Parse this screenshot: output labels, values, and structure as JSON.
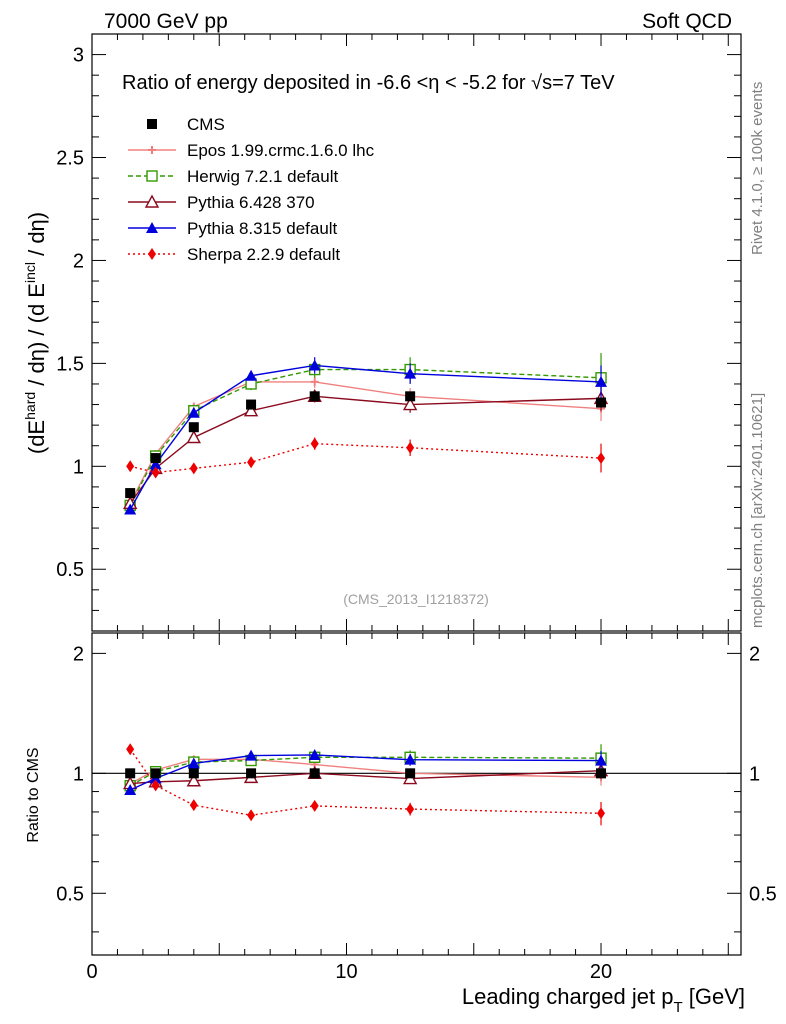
{
  "header": {
    "left": "7000 GeV pp",
    "right": "Soft QCD"
  },
  "side_text": {
    "rivet": "Rivet 4.1.0, ≥ 100k events",
    "mcplots": "mcplots.cern.ch [arXiv:2401.10621]"
  },
  "main_title": "Ratio of energy deposited in -6.6 <η < -5.2 for √s=7 TeV",
  "watermark": "(CMS_2013_I1218372)",
  "labels": {
    "ylabel": "(dE^hard / dη) / (d E^incl / dη)",
    "ylabel_parts": [
      "(dE",
      "hard",
      " / dη) / (d E",
      "incl",
      " / dη)"
    ],
    "ratio_ylabel": "Ratio to CMS",
    "xlabel": "Leading charged jet p_T [GeV]",
    "xlabel_parts": [
      "Leading charged jet p",
      "T",
      " [GeV]"
    ]
  },
  "chart_data": {
    "type": "line",
    "x_bin_edges": [
      1,
      2,
      3,
      5,
      7.5,
      10,
      15,
      25
    ],
    "x": [
      1.5,
      2.5,
      4,
      6.25,
      8.75,
      12.5,
      20
    ],
    "xlim": [
      0,
      25.5
    ],
    "main_ylim": [
      0.2,
      3.1
    ],
    "ratio_ylim": [
      0.35,
      2.25
    ],
    "x_ticks": [
      0,
      10,
      20
    ],
    "main_y_ticks": [
      0.5,
      1,
      1.5,
      2,
      2.5,
      3
    ],
    "ratio_y_ticks": [
      0.5,
      1,
      2
    ],
    "series": [
      {
        "name": "CMS",
        "color": "#000000",
        "marker": "square-filled",
        "dash": "none",
        "values": [
          0.87,
          1.04,
          1.19,
          1.3,
          1.34,
          1.34,
          1.31
        ],
        "errors": [
          0.02,
          0.02,
          0.02,
          0.02,
          0.02,
          0.02,
          0.02
        ]
      },
      {
        "name": "Epos 1.99.crmc.1.6.0 lhc",
        "color": "#f08080",
        "marker": "cross",
        "dash": "none",
        "values": [
          0.82,
          1.06,
          1.29,
          1.41,
          1.41,
          1.34,
          1.28
        ],
        "errors": [
          0.01,
          0.01,
          0.02,
          0.02,
          0.03,
          0.04,
          0.06
        ]
      },
      {
        "name": "Herwig 7.2.1 default",
        "color": "#339900",
        "marker": "square-open",
        "dash": "dashed",
        "values": [
          0.81,
          1.05,
          1.27,
          1.4,
          1.47,
          1.47,
          1.43
        ],
        "errors": [
          0.01,
          0.02,
          0.02,
          0.03,
          0.04,
          0.06,
          0.12
        ]
      },
      {
        "name": "Pythia 6.428 370",
        "color": "#8b0a1e",
        "marker": "triangle-open",
        "dash": "none",
        "values": [
          0.82,
          0.99,
          1.14,
          1.27,
          1.34,
          1.3,
          1.33
        ],
        "errors": [
          0.01,
          0.01,
          0.02,
          0.02,
          0.03,
          0.04,
          0.06
        ]
      },
      {
        "name": "Pythia 8.315 default",
        "color": "#0000dd",
        "marker": "triangle-filled",
        "dash": "none",
        "values": [
          0.79,
          1.01,
          1.26,
          1.44,
          1.49,
          1.45,
          1.41
        ],
        "errors": [
          0.01,
          0.01,
          0.02,
          0.02,
          0.04,
          0.05,
          0.08
        ]
      },
      {
        "name": "Sherpa 2.2.9 default",
        "color": "#ee0000",
        "marker": "diamond-filled",
        "dash": "dotted",
        "values": [
          1.0,
          0.97,
          0.99,
          1.02,
          1.11,
          1.09,
          1.04
        ],
        "errors": [
          0.01,
          0.01,
          0.01,
          0.02,
          0.03,
          0.04,
          0.07
        ]
      }
    ]
  }
}
